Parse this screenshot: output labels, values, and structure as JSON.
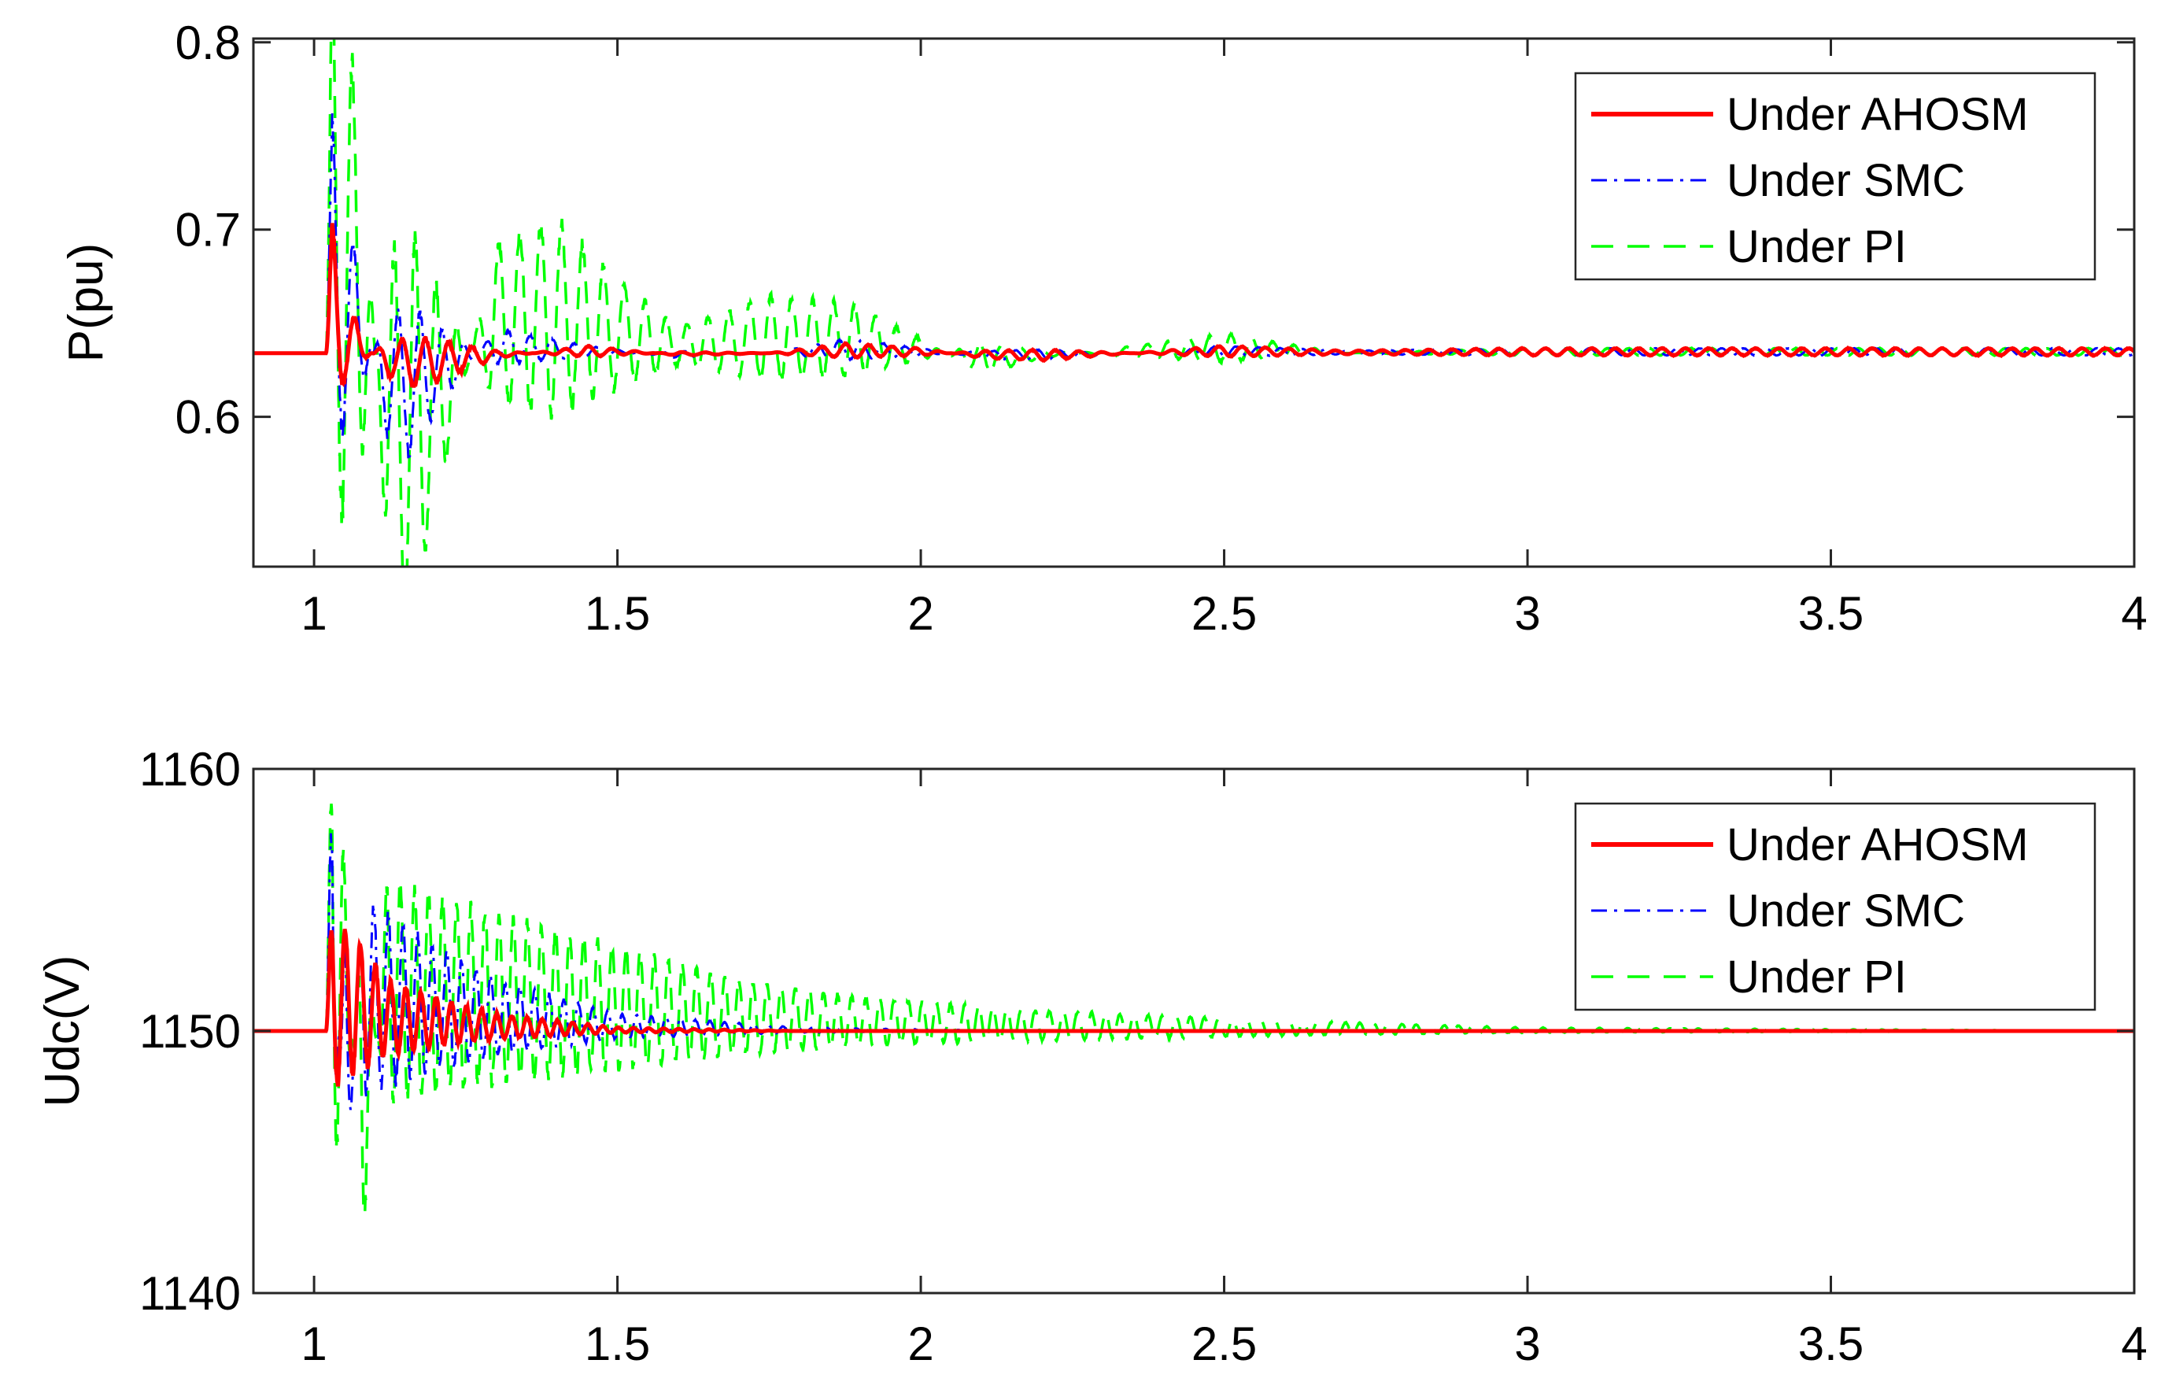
{
  "colors": {
    "ahosm": "#ff0000",
    "smc": "#0000ff",
    "pi": "#00ff00"
  },
  "chart_data": [
    {
      "type": "line",
      "title": "",
      "xlabel": "",
      "ylabel": "P(pu)",
      "xlim": [
        0.9,
        4.0
      ],
      "ylim": [
        0.52,
        0.802
      ],
      "xticks": [
        1,
        1.5,
        2,
        2.5,
        3,
        3.5,
        4
      ],
      "xtick_labels": [
        "1",
        "1.5",
        "2",
        "2.5",
        "3",
        "3.5",
        "4"
      ],
      "yticks": [
        0.6,
        0.7,
        0.8
      ],
      "ytick_labels": [
        "0.6",
        "0.7",
        "0.8"
      ],
      "grid": false,
      "legend": "top-right",
      "baseline": 0.634,
      "disturbance_time": 1.02,
      "series": [
        {
          "name": "Under AHOSM",
          "color": "#ff0000",
          "style": "solid",
          "x": [
            0.9,
            1.0,
            1.02,
            1.03,
            1.05,
            1.08,
            1.12,
            1.16,
            1.2,
            1.3,
            1.45,
            1.6,
            1.75,
            1.88,
            2.0,
            2.1,
            2.2,
            2.35,
            2.5,
            2.7,
            3.0,
            3.5,
            4.0
          ],
          "y": [
            0.634,
            0.634,
            0.634,
            0.69,
            0.66,
            0.64,
            0.625,
            0.62,
            0.622,
            0.632,
            0.637,
            0.633,
            0.634,
            0.638,
            0.636,
            0.632,
            0.631,
            0.634,
            0.637,
            0.635,
            0.636,
            0.636,
            0.636
          ]
        },
        {
          "name": "Under SMC",
          "color": "#0000ff",
          "style": "dash-dot",
          "x": [
            0.9,
            1.0,
            1.02,
            1.03,
            1.05,
            1.08,
            1.12,
            1.16,
            1.2,
            1.3,
            1.45,
            1.6,
            1.75,
            1.88,
            2.0,
            2.1,
            2.2,
            2.35,
            2.5,
            2.7,
            3.0,
            3.5,
            4.0
          ],
          "y": [
            0.634,
            0.634,
            0.634,
            0.735,
            0.7,
            0.66,
            0.6,
            0.59,
            0.61,
            0.644,
            0.637,
            0.632,
            0.634,
            0.64,
            0.636,
            0.632,
            0.631,
            0.634,
            0.637,
            0.635,
            0.636,
            0.636,
            0.636
          ]
        },
        {
          "name": "Under PI",
          "color": "#00ff00",
          "style": "dashed",
          "x": [
            0.9,
            1.0,
            1.02,
            1.03,
            1.05,
            1.08,
            1.12,
            1.16,
            1.2,
            1.3,
            1.4,
            1.5,
            1.6,
            1.75,
            1.88,
            2.0,
            2.1,
            2.2,
            2.35,
            2.5,
            2.7,
            3.0,
            3.5,
            4.0
          ],
          "y": [
            0.634,
            0.634,
            0.634,
            0.8,
            0.78,
            0.72,
            0.55,
            0.52,
            0.57,
            0.68,
            0.69,
            0.665,
            0.645,
            0.658,
            0.655,
            0.64,
            0.625,
            0.632,
            0.637,
            0.642,
            0.634,
            0.636,
            0.636,
            0.636
          ]
        }
      ]
    },
    {
      "type": "line",
      "title": "",
      "xlabel": "",
      "ylabel": "Udc(V)",
      "xlim": [
        0.9,
        4.0
      ],
      "ylim": [
        1140,
        1160
      ],
      "xticks": [
        1,
        1.5,
        2,
        2.5,
        3,
        3.5,
        4
      ],
      "xtick_labels": [
        "1",
        "1.5",
        "2",
        "2.5",
        "3",
        "3.5",
        "4"
      ],
      "yticks": [
        1140,
        1150,
        1160
      ],
      "ytick_labels": [
        "1140",
        "1150",
        "1160"
      ],
      "grid": false,
      "legend": "top-right",
      "baseline": 1150,
      "disturbance_time": 1.02,
      "series": [
        {
          "name": "Under AHOSM",
          "color": "#ff0000",
          "style": "solid",
          "x": [
            0.9,
            1.0,
            1.02,
            1.03,
            1.05,
            1.08,
            1.12,
            1.2,
            1.3,
            1.5,
            1.8,
            2.2,
            3.0,
            4.0
          ],
          "y": [
            1150,
            1150,
            1150,
            1154,
            1153,
            1152.5,
            1151.5,
            1151,
            1150.5,
            1150.1,
            1150,
            1150,
            1150,
            1150
          ]
        },
        {
          "name": "Under SMC",
          "color": "#0000ff",
          "style": "dash-dot",
          "x": [
            0.9,
            1.0,
            1.02,
            1.03,
            1.05,
            1.08,
            1.12,
            1.2,
            1.3,
            1.5,
            1.8,
            2.2,
            3.0,
            4.0
          ],
          "y": [
            1150,
            1150,
            1150,
            1158,
            1144,
            1154,
            1153.5,
            1152.5,
            1151.5,
            1150.5,
            1150.1,
            1150,
            1150,
            1150
          ]
        },
        {
          "name": "Under PI",
          "color": "#00ff00",
          "style": "dashed",
          "x": [
            0.9,
            1.0,
            1.02,
            1.03,
            1.05,
            1.08,
            1.12,
            1.2,
            1.3,
            1.5,
            1.7,
            1.9,
            2.2,
            2.6,
            3.0,
            4.0
          ],
          "y": [
            1150,
            1150,
            1150,
            1159.5,
            1155,
            1143.5,
            1154.5,
            1154,
            1153.5,
            1152.5,
            1151.5,
            1151,
            1150.6,
            1150.3,
            1150.1,
            1150
          ]
        }
      ]
    }
  ]
}
